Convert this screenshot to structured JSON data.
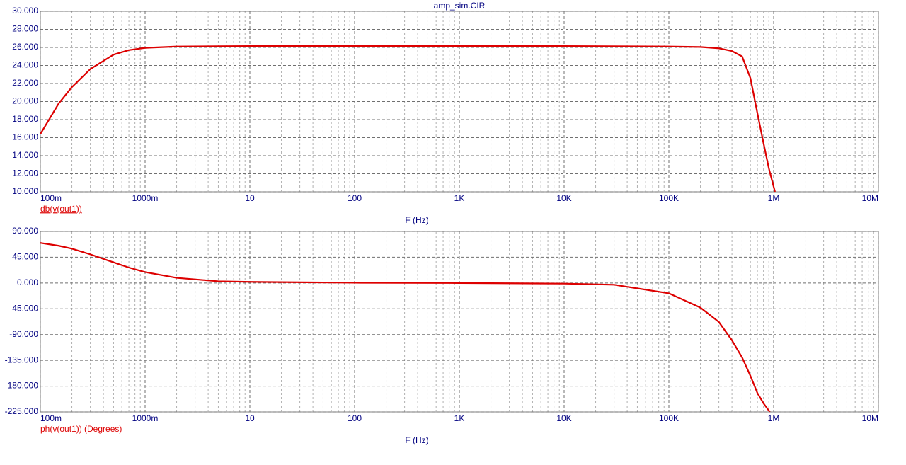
{
  "chart_data": [
    {
      "type": "line",
      "title": "amp_sim.CIR",
      "xlabel": "F (Hz)",
      "xscale": "log",
      "grid": true,
      "xlim": [
        0.1,
        10000000
      ],
      "ylim": [
        10,
        30
      ],
      "xticks": [
        {
          "value": 0.1,
          "label": "100m"
        },
        {
          "value": 1,
          "label": "1000m"
        },
        10,
        100,
        {
          "value": 1000,
          "label": "1K"
        },
        {
          "value": 10000,
          "label": "10K"
        },
        {
          "value": 100000,
          "label": "100K"
        },
        {
          "value": 1000000,
          "label": "1M"
        },
        {
          "value": 10000000,
          "label": "10M"
        }
      ],
      "xminorticks": [
        0.2,
        0.3,
        0.4,
        0.5,
        0.6,
        0.7,
        0.8,
        0.9,
        2,
        3,
        4,
        5,
        6,
        7,
        8,
        9,
        20,
        30,
        40,
        50,
        60,
        70,
        80,
        90,
        200,
        300,
        400,
        500,
        600,
        700,
        800,
        900,
        2000,
        3000,
        4000,
        5000,
        6000,
        7000,
        8000,
        9000,
        20000,
        30000,
        40000,
        50000,
        60000,
        70000,
        80000,
        90000,
        200000,
        300000,
        400000,
        500000,
        600000,
        700000,
        800000,
        900000,
        2000000,
        3000000,
        4000000,
        5000000,
        6000000,
        7000000,
        8000000,
        9000000
      ],
      "yticks": [
        {
          "value": 10,
          "label": "10.000"
        },
        {
          "value": 12,
          "label": "12.000"
        },
        {
          "value": 14,
          "label": "14.000"
        },
        {
          "value": 16,
          "label": "16.000"
        },
        {
          "value": 18,
          "label": "18.000"
        },
        {
          "value": 20,
          "label": "20.000"
        },
        {
          "value": 22,
          "label": "22.000"
        },
        {
          "value": 24,
          "label": "24.000"
        },
        {
          "value": 26,
          "label": "26.000"
        },
        {
          "value": 28,
          "label": "28.000"
        },
        {
          "value": 30,
          "label": "30.000"
        }
      ],
      "x": [
        0.1,
        0.15,
        0.2,
        0.3,
        0.5,
        0.7,
        1,
        2,
        5,
        10,
        100,
        1000,
        10000,
        100000,
        200000,
        300000,
        400000,
        500000,
        600000,
        700000,
        800000,
        900000,
        1030000
      ],
      "series": [
        {
          "name": "db(v(out1))",
          "color": "#dd0000",
          "values": [
            16.4,
            19.8,
            21.6,
            23.6,
            25.2,
            25.7,
            25.95,
            26.1,
            26.13,
            26.15,
            26.15,
            26.15,
            26.15,
            26.1,
            26.05,
            25.9,
            25.6,
            25.0,
            22.6,
            18.7,
            15.4,
            12.6,
            10
          ]
        }
      ]
    },
    {
      "type": "line",
      "xlabel": "F (Hz)",
      "xscale": "log",
      "grid": true,
      "xlim": [
        0.1,
        10000000
      ],
      "ylim": [
        -225,
        90
      ],
      "xticks": [
        {
          "value": 0.1,
          "label": "100m"
        },
        {
          "value": 1,
          "label": "1000m"
        },
        10,
        100,
        {
          "value": 1000,
          "label": "1K"
        },
        {
          "value": 10000,
          "label": "10K"
        },
        {
          "value": 100000,
          "label": "100K"
        },
        {
          "value": 1000000,
          "label": "1M"
        },
        {
          "value": 10000000,
          "label": "10M"
        }
      ],
      "xminorticks": [
        0.2,
        0.3,
        0.4,
        0.5,
        0.6,
        0.7,
        0.8,
        0.9,
        2,
        3,
        4,
        5,
        6,
        7,
        8,
        9,
        20,
        30,
        40,
        50,
        60,
        70,
        80,
        90,
        200,
        300,
        400,
        500,
        600,
        700,
        800,
        900,
        2000,
        3000,
        4000,
        5000,
        6000,
        7000,
        8000,
        9000,
        20000,
        30000,
        40000,
        50000,
        60000,
        70000,
        80000,
        90000,
        200000,
        300000,
        400000,
        500000,
        600000,
        700000,
        800000,
        900000,
        2000000,
        3000000,
        4000000,
        5000000,
        6000000,
        7000000,
        8000000,
        9000000
      ],
      "yticks": [
        {
          "value": -225,
          "label": "-225.000"
        },
        {
          "value": -180,
          "label": "-180.000"
        },
        {
          "value": -135,
          "label": "-135.000"
        },
        {
          "value": -90,
          "label": "-90.000"
        },
        {
          "value": -45,
          "label": "-45.000"
        },
        {
          "value": 0,
          "label": "0.000"
        },
        {
          "value": 45,
          "label": "45.000"
        },
        {
          "value": 90,
          "label": "90.000"
        }
      ],
      "x": [
        0.1,
        0.15,
        0.2,
        0.3,
        0.5,
        0.7,
        1,
        2,
        5,
        10,
        100,
        1000,
        10000,
        30000,
        100000,
        200000,
        300000,
        400000,
        500000,
        600000,
        700000,
        800000,
        920000
      ],
      "series": [
        {
          "name": "ph(v(out1)) (Degrees)",
          "color": "#dd0000",
          "values": [
            70,
            65,
            60,
            50,
            36,
            27,
            19,
            9,
            3,
            2,
            0.5,
            0,
            -1,
            -3,
            -18,
            -43,
            -68,
            -100,
            -130,
            -162,
            -192,
            -210,
            -225
          ]
        }
      ]
    }
  ]
}
